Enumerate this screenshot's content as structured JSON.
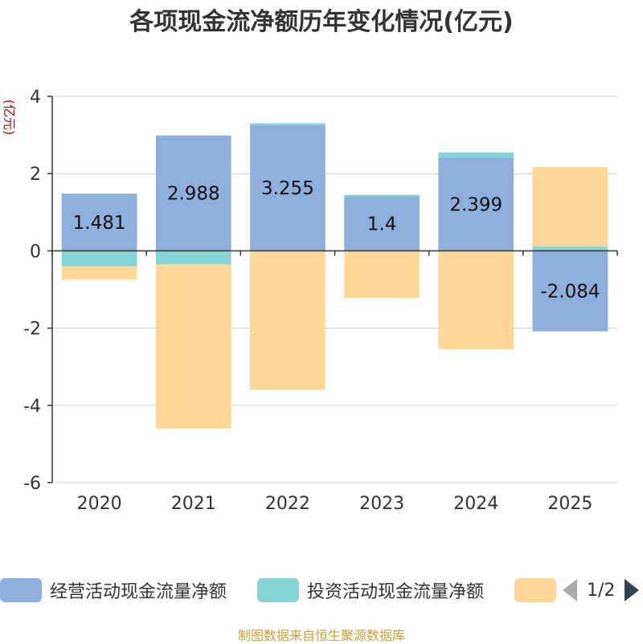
{
  "title": "各项现金流净额历年变化情况(亿元)",
  "source": "制图数据来自恒生聚源数据库",
  "colors": {
    "operating": "#8eaedb",
    "investing": "#85d4d6",
    "financing": "#ffd899",
    "unit": "#cc0000",
    "axis": "#333333",
    "grid": "#cccccc"
  },
  "legend": {
    "items": [
      "经营活动现金流量净额",
      "投资活动现金流量净额",
      ""
    ],
    "page": "1/2"
  },
  "chart_data": {
    "type": "bar",
    "stacked": true,
    "unit_label": "(亿元)",
    "categories": [
      "2020",
      "2021",
      "2022",
      "2023",
      "2024",
      "2025"
    ],
    "ylim": [
      -6,
      4
    ],
    "yticks": [
      4,
      2,
      0,
      -2,
      -4,
      -6
    ],
    "grid": true,
    "series": [
      {
        "name": "经营活动现金流量净额",
        "values": [
          1.481,
          2.988,
          3.255,
          1.4,
          2.399,
          -2.084
        ],
        "labels": [
          "1.481",
          "2.988",
          "3.255",
          "1.4",
          "2.399",
          "-2.084"
        ]
      },
      {
        "name": "投资活动现金流量净额",
        "values": [
          -0.4,
          -0.35,
          0.05,
          0.05,
          0.15,
          0.12
        ]
      },
      {
        "name": "",
        "values": [
          -0.35,
          -4.25,
          -3.6,
          -1.22,
          -2.55,
          2.05
        ]
      }
    ]
  }
}
